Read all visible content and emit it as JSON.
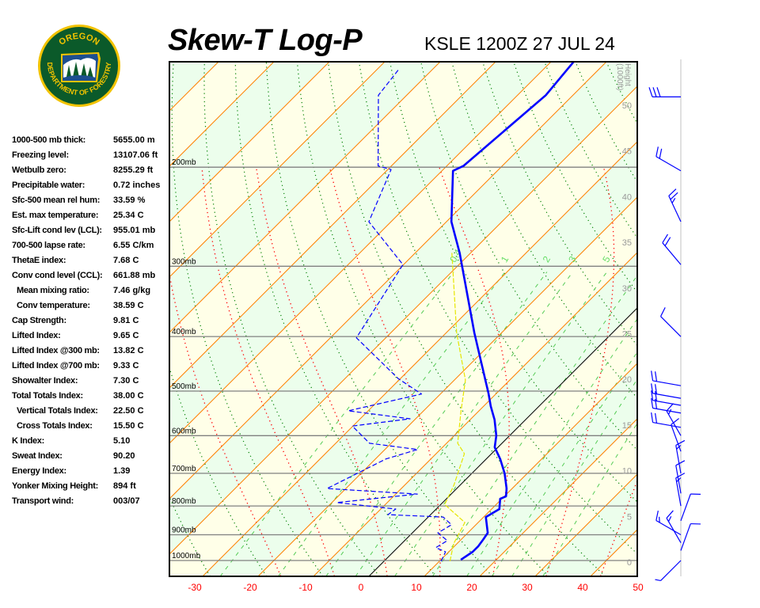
{
  "header": {
    "title": "Skew-T Log-P",
    "station_time": "KSLE 1200Z 27 JUL 24"
  },
  "logo": {
    "top_text": "OREGON",
    "bottom_text": "DEPARTMENT OF FORESTRY",
    "colors": {
      "green": "#0b5a2a",
      "gold": "#f2c300"
    }
  },
  "stats": [
    {
      "label": "1000-500 mb thick:",
      "value": "5655.00 m"
    },
    {
      "label": "Freezing level:",
      "value": "13107.06 ft"
    },
    {
      "label": "Wetbulb zero:",
      "value": "8255.29 ft"
    },
    {
      "label": "Precipitable water:",
      "value": "0.72 inches"
    },
    {
      "label": "Sfc-500 mean rel hum:",
      "value": "33.59 %"
    },
    {
      "label": "Est. max temperature:",
      "value": "25.34 C"
    },
    {
      "label": "Sfc-Lift cond lev (LCL):",
      "value": "955.01 mb"
    },
    {
      "label": "700-500 lapse rate:",
      "value": "6.55 C/km"
    },
    {
      "label": "ThetaE index:",
      "value": "7.68 C"
    },
    {
      "label": "Conv cond level (CCL):",
      "value": "661.88 mb"
    },
    {
      "label": "Mean mixing ratio:",
      "value": "7.46 g/kg",
      "indent": true
    },
    {
      "label": "Conv temperature:",
      "value": "38.59 C",
      "indent": true
    },
    {
      "label": "Cap Strength:",
      "value": "9.81 C"
    },
    {
      "label": "Lifted Index:",
      "value": "9.65 C"
    },
    {
      "label": "Lifted Index @300 mb:",
      "value": "13.82 C"
    },
    {
      "label": "Lifted Index @700 mb:",
      "value": "9.33 C"
    },
    {
      "label": "Showalter Index:",
      "value": "7.30 C"
    },
    {
      "label": "Total Totals Index:",
      "value": "38.00 C"
    },
    {
      "label": "Vertical Totals Index:",
      "value": "22.50 C",
      "indent": true
    },
    {
      "label": "Cross Totals Index:",
      "value": "15.50 C",
      "indent": true
    },
    {
      "label": "K Index:",
      "value": "5.10"
    },
    {
      "label": "Sweat Index:",
      "value": "90.20"
    },
    {
      "label": "Energy Index:",
      "value": "1.39"
    },
    {
      "label": "Yonker Mixing Height:",
      "value": "894 ft"
    },
    {
      "label": "Transport wind:",
      "value": "003/07"
    }
  ],
  "chart_data": {
    "type": "line",
    "diagram": "skew-t log-p",
    "y_scale": "log pressure",
    "ylim_mb": [
      1067,
      130
    ],
    "x_ticks": [
      "-30",
      "-20",
      "-10",
      "0",
      "10",
      "20",
      "30",
      "40",
      "50"
    ],
    "x_tick_values": [
      -30,
      -20,
      -10,
      0,
      10,
      20,
      30,
      40,
      50
    ],
    "pressure_levels": [
      {
        "p": 200,
        "label": "200mb"
      },
      {
        "p": 300,
        "label": "300mb"
      },
      {
        "p": 400,
        "label": "400mb"
      },
      {
        "p": 500,
        "label": "500mb"
      },
      {
        "p": 600,
        "label": "600mb"
      },
      {
        "p": 700,
        "label": "700mb"
      },
      {
        "p": 800,
        "label": "800mb"
      },
      {
        "p": 900,
        "label": "900mb"
      },
      {
        "p": 1000,
        "label": "1000mb"
      }
    ],
    "height_axis": {
      "label": "Height (1000ft)",
      "ticks": [
        "0",
        "5",
        "10",
        "15",
        "20",
        "25",
        "30",
        "35",
        "40",
        "45",
        "50"
      ]
    },
    "mixing_ratio_labels": [
      {
        "w": 0.4,
        "label": "0.4"
      },
      {
        "w": 1,
        "label": "1"
      },
      {
        "w": 2,
        "label": "2"
      },
      {
        "w": 3,
        "label": "3"
      },
      {
        "w": 5,
        "label": "5"
      }
    ],
    "mixing_ratio_lines": [
      0.4,
      1,
      2,
      3,
      5,
      8,
      12,
      16,
      20,
      28
    ],
    "dry_adiabats_K": [
      230,
      240,
      250,
      260,
      270,
      280,
      290,
      300,
      310,
      320,
      330,
      340,
      350,
      360,
      370,
      380,
      390,
      400,
      410,
      420,
      430,
      440,
      450
    ],
    "moist_adiabats_C": [
      -20,
      -10,
      0,
      10,
      20,
      30,
      40
    ],
    "isotherm_step_C": 10,
    "highlight_isotherm_C": 0,
    "colors": {
      "temperature": "#0000ff",
      "dewpoint": "#0000ff",
      "wetbulb": "#e6e600",
      "isotherm": "#ff8000",
      "zero_isotherm": "#000000",
      "dry_adiabat": "#008000",
      "moist_adiabat": "#ff0000",
      "mixing_ratio": "#55cc55",
      "pressure_line": "#808080",
      "band_a": "#ffffe8",
      "band_b": "#ecfeec",
      "tick_label": "#ff0000",
      "height_label": "#999999"
    },
    "series": [
      {
        "style": "solid-thick",
        "points": [
          [
            997,
            13.6
          ],
          [
            965,
            14.3
          ],
          [
            943,
            14.3
          ],
          [
            919,
            14.0
          ],
          [
            893,
            13.6
          ],
          [
            837,
            10.4
          ],
          [
            810,
            11.4
          ],
          [
            777,
            9.7
          ],
          [
            769,
            10.3
          ],
          [
            745,
            9.0
          ],
          [
            700,
            5.9
          ],
          [
            661,
            2.6
          ],
          [
            629,
            -0.6
          ],
          [
            600,
            -2.4
          ],
          [
            562,
            -5.6
          ],
          [
            532,
            -8.7
          ],
          [
            505,
            -11.4
          ],
          [
            478,
            -14.4
          ],
          [
            394,
            -24.9
          ],
          [
            284,
            -42.0
          ],
          [
            250,
            -49.1
          ],
          [
            203,
            -58.0
          ],
          [
            199,
            -57.0
          ],
          [
            149,
            -54.9
          ],
          [
            130,
            -55.9
          ]
        ]
      },
      {
        "style": "dashed",
        "points": [
          [
            1003,
            10.3
          ],
          [
            965,
            9.4
          ],
          [
            949,
            6.9
          ],
          [
            922,
            7.7
          ],
          [
            893,
            4.6
          ],
          [
            864,
            5.6
          ],
          [
            837,
            2.7
          ],
          [
            829,
            -7.7
          ],
          [
            810,
            -7.3
          ],
          [
            789,
            -19.1
          ],
          [
            762,
            -6.1
          ],
          [
            745,
            -23.4
          ],
          [
            660,
            -18.1
          ],
          [
            635,
            -14.1
          ],
          [
            619,
            -23.9
          ],
          [
            577,
            -30.1
          ],
          [
            560,
            -21.0
          ],
          [
            542,
            -33.6
          ],
          [
            506,
            -23.4
          ],
          [
            475,
            -30.4
          ],
          [
            402,
            -45.3
          ],
          [
            298,
            -50.1
          ],
          [
            250,
            -64.0
          ],
          [
            202,
            -69.4
          ],
          [
            199,
            -72.4
          ],
          [
            149,
            -85.1
          ],
          [
            134,
            -86.1
          ]
        ]
      },
      {
        "style": "dashed-yellow",
        "points": [
          [
            1003,
            11.9
          ],
          [
            934,
            9.4
          ],
          [
            856,
            7.6
          ],
          [
            795,
            0.7
          ],
          [
            735,
            -1.1
          ],
          [
            646,
            -4.9
          ],
          [
            619,
            -8.0
          ],
          [
            544,
            -13.1
          ],
          [
            478,
            -18.0
          ],
          [
            394,
            -28.1
          ],
          [
            284,
            -43.4
          ]
        ]
      }
    ],
    "winds": [
      {
        "p": 1000,
        "dir": 225,
        "kt": 5
      },
      {
        "p": 960,
        "dir": 20,
        "kt": 10
      },
      {
        "p": 930,
        "dir": 330,
        "kt": 15
      },
      {
        "p": 900,
        "dir": 300,
        "kt": 15
      },
      {
        "p": 850,
        "dir": 20,
        "kt": 10
      },
      {
        "p": 800,
        "dir": 350,
        "kt": 15
      },
      {
        "p": 760,
        "dir": 350,
        "kt": 10
      },
      {
        "p": 700,
        "dir": 350,
        "kt": 15
      },
      {
        "p": 640,
        "dir": 340,
        "kt": 10
      },
      {
        "p": 600,
        "dir": 330,
        "kt": 15
      },
      {
        "p": 580,
        "dir": 280,
        "kt": 20
      },
      {
        "p": 547,
        "dir": 280,
        "kt": 20
      },
      {
        "p": 530,
        "dir": 280,
        "kt": 20
      },
      {
        "p": 515,
        "dir": 280,
        "kt": 20
      },
      {
        "p": 489,
        "dir": 280,
        "kt": 20
      },
      {
        "p": 400,
        "dir": 315,
        "kt": 10
      },
      {
        "p": 298,
        "dir": 320,
        "kt": 20
      },
      {
        "p": 250,
        "dir": 335,
        "kt": 25
      },
      {
        "p": 203,
        "dir": 300,
        "kt": 20
      },
      {
        "p": 150,
        "dir": 270,
        "kt": 30
      }
    ]
  }
}
